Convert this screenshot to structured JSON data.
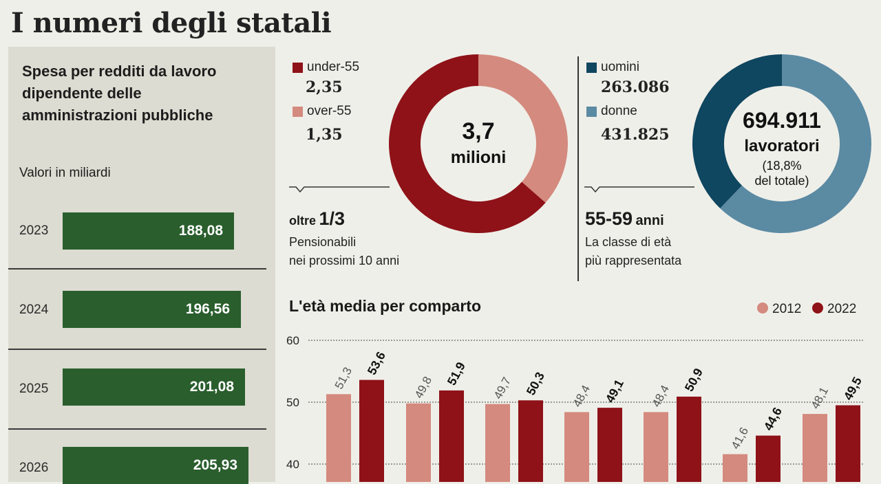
{
  "title": "I numeri degli statali",
  "spending": {
    "heading": "Spesa per redditi da lavoro dipendente delle amministrazioni pubbliche",
    "subtitle": "Valori in miliardi",
    "rows": [
      {
        "year": "2023",
        "label": "188,08",
        "value": 188.08
      },
      {
        "year": "2024",
        "label": "196,56",
        "value": 196.56
      },
      {
        "year": "2025",
        "label": "201,08",
        "value": 201.08
      },
      {
        "year": "2026",
        "label": "205,93",
        "value": 205.93
      }
    ]
  },
  "age_donut": {
    "legend": [
      {
        "label": "under-55",
        "value_label": "2,35",
        "value": 2.35,
        "color": "#8e1218"
      },
      {
        "label": "over-55",
        "value_label": "1,35",
        "value": 1.35,
        "color": "#d48a7e"
      }
    ],
    "center_number": "3,7",
    "center_unit": "milioni",
    "note_prefix": "oltre",
    "note_big": "1/3",
    "note_text_line1": "Pensionabili",
    "note_text_line2": "nei prossimi 10 anni"
  },
  "gender_donut": {
    "legend": [
      {
        "label": "uomini",
        "value_label": "263.086",
        "value": 263086,
        "color": "#0f4660"
      },
      {
        "label": "donne",
        "value_label": "431.825",
        "value": 431825,
        "color": "#5b8aa3"
      }
    ],
    "center_number": "694.911",
    "center_unit": "lavoratori",
    "center_line3": "(18,8%",
    "center_line4": "del totale)",
    "note_big": "55-59",
    "note_suffix": "anni",
    "note_text_line1": "La classe di età",
    "note_text_line2": "più rappresentata"
  },
  "colors": {
    "green": "#2a5e2d",
    "red_dark": "#8e1218",
    "red_light": "#d48a7e",
    "blue_dark": "#0f4660",
    "blue_light": "#5b8aa3"
  },
  "chart_data": {
    "type": "bar",
    "title": "L'età media per comparto",
    "ylim": [
      34,
      60
    ],
    "yticks": [
      "60",
      "50",
      "40"
    ],
    "grid": true,
    "legend_position": "top-right",
    "categories": [
      "",
      "",
      "",
      "",
      "",
      "",
      ""
    ],
    "series": [
      {
        "name": "2012",
        "color": "#d48a7e",
        "values": [
          51.3,
          49.8,
          49.7,
          48.4,
          48.4,
          41.6,
          48.1
        ],
        "labels": [
          "51,3",
          "49,8",
          "49,7",
          "48,4",
          "48,4",
          "41,6",
          "48,1"
        ]
      },
      {
        "name": "2022",
        "color": "#8e1218",
        "values": [
          53.6,
          51.9,
          50.3,
          49.1,
          50.9,
          44.6,
          49.5
        ],
        "labels": [
          "53,6",
          "51,9",
          "50,3",
          "49,1",
          "50,9",
          "44,6",
          "49,5"
        ]
      }
    ]
  }
}
